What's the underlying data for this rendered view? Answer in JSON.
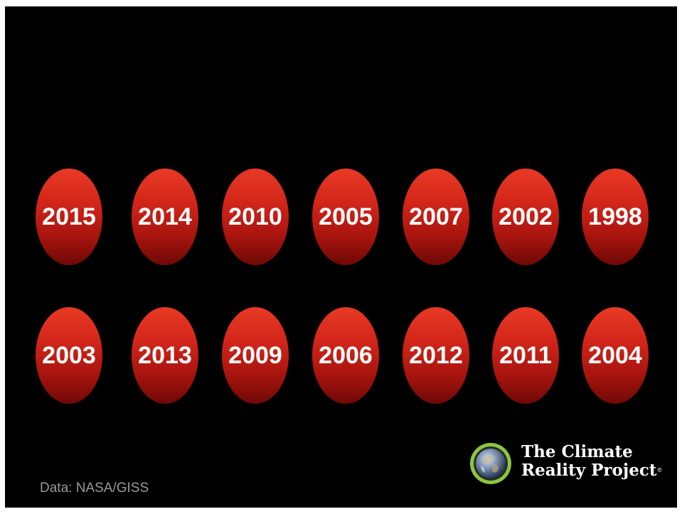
{
  "rows": [
    [
      "2015",
      "2014",
      "2010",
      "2005",
      "2007",
      "2002",
      "1998"
    ],
    [
      "2003",
      "2013",
      "2009",
      "2006",
      "2012",
      "2011",
      "2004"
    ]
  ],
  "source": "Data: NASA/GISS",
  "logo": {
    "line1": "The Climate",
    "line2": "Reality Project",
    "mark": "®",
    "icon": "earth-globe-icon"
  },
  "colors": {
    "background": "#000000",
    "oval_top": "#e83a24",
    "oval_bottom": "#6e0906",
    "ring": "#8cc63f",
    "text": "#ffffff",
    "source_text": "#9a9a9a"
  }
}
